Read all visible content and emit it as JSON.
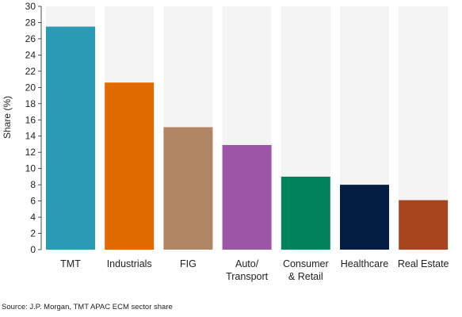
{
  "chart_data": {
    "type": "bar",
    "title": "",
    "xlabel": "",
    "ylabel": "Share (%)",
    "ylim": [
      0,
      30
    ],
    "yticks": [
      0,
      2,
      4,
      6,
      8,
      10,
      12,
      14,
      16,
      18,
      20,
      22,
      24,
      26,
      28,
      30
    ],
    "grid": false,
    "legend": "none",
    "background_bar_color": "#f4f4f4",
    "categories": [
      {
        "label_lines": [
          "TMT"
        ],
        "value": 27.5,
        "color": "#2a9bb4"
      },
      {
        "label_lines": [
          "Industrials"
        ],
        "value": 20.6,
        "color": "#e16b00"
      },
      {
        "label_lines": [
          "FIG"
        ],
        "value": 15.1,
        "color": "#b08665"
      },
      {
        "label_lines": [
          "Auto/",
          "Transport"
        ],
        "value": 12.9,
        "color": "#9c56a6"
      },
      {
        "label_lines": [
          "Consumer",
          "& Retail"
        ],
        "value": 9.0,
        "color": "#00835d"
      },
      {
        "label_lines": [
          "Healthcare"
        ],
        "value": 8.0,
        "color": "#031e42"
      },
      {
        "label_lines": [
          "Real Estate"
        ],
        "value": 6.1,
        "color": "#a8441d"
      }
    ]
  },
  "source": "Source: J.P. Morgan, TMT APAC ECM sector share"
}
